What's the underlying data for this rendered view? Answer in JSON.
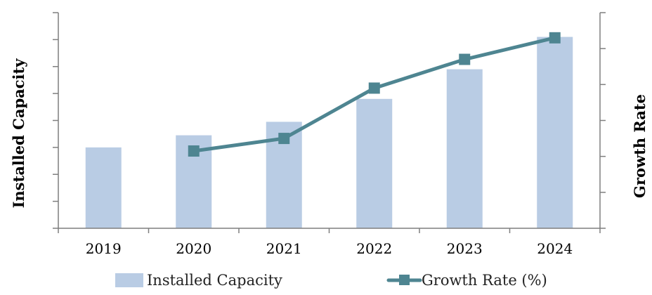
{
  "chart_data": {
    "type": "bar",
    "categories": [
      "2019",
      "2020",
      "2021",
      "2022",
      "2023",
      "2024"
    ],
    "series": [
      {
        "name": "Installed Capacity",
        "type": "bar",
        "axis": "left",
        "values": [
          30,
          34.5,
          39.5,
          48,
          59,
          71
        ]
      },
      {
        "name": "Growth Rate (%)",
        "type": "line",
        "axis": "right",
        "values": [
          null,
          21.5,
          25,
          39,
          47,
          53
        ]
      }
    ],
    "ylabel": "Installed Capacity",
    "y2label": "Growth Rate",
    "ylim": [
      0,
      80
    ],
    "y2lim": [
      0,
      60
    ],
    "ytick_count": 8,
    "y2tick_count": 6,
    "tick_labels_shown": false,
    "grid": false,
    "legend_position": "bottom",
    "colors": {
      "bar": "#b9cce4",
      "line": "#4e8591",
      "axis": "#7f7f7f"
    }
  }
}
